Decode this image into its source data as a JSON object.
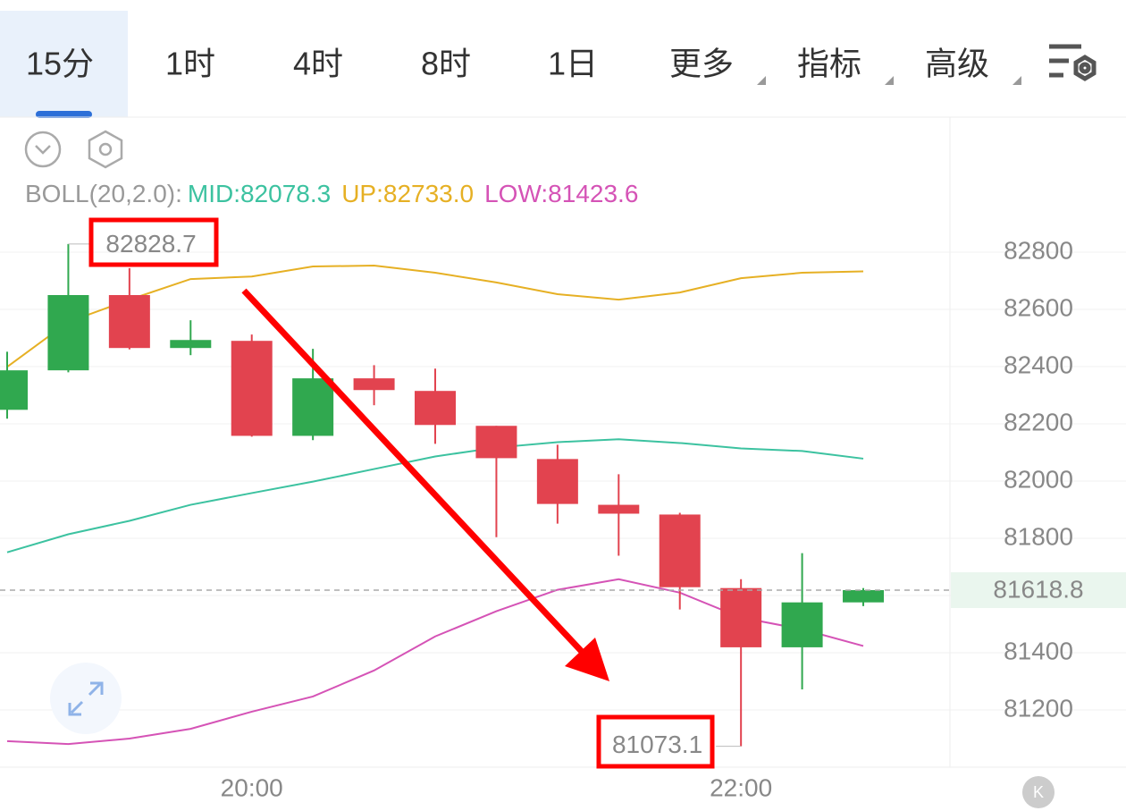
{
  "tabs": [
    "15分",
    "1时",
    "4时",
    "8时",
    "1日",
    "更多",
    "指标",
    "高级"
  ],
  "active_tab": 0,
  "chart_data": {
    "type": "candlestick",
    "x": [
      null,
      null,
      null,
      null,
      "20:00",
      null,
      null,
      null,
      null,
      null,
      null,
      null,
      "22:00",
      null,
      null
    ],
    "open": [
      82249,
      82387,
      82650,
      82465,
      82490,
      82158,
      82359,
      82315,
      82193,
      82077,
      81917,
      81883,
      81626,
      81419,
      81576
    ],
    "high": [
      82452,
      82828.7,
      82744,
      82562,
      82512,
      82462,
      82405,
      82393,
      82193,
      82127,
      82024,
      81889,
      81657,
      81748,
      81626
    ],
    "low": [
      82218,
      82380,
      82460,
      82440,
      82155,
      82143,
      82265,
      82130,
      81804,
      81851,
      81739,
      81551,
      81073.1,
      81272,
      81563
    ],
    "close": [
      82387,
      82650,
      82465,
      82493,
      82158,
      82359,
      82318,
      82196,
      82080,
      81920,
      81886,
      81629,
      81419,
      81576,
      81618.8
    ],
    "up_color": "#30a84f",
    "down_color": "#e2434f",
    "indicator_label": "BOLL(20,2.0):",
    "series": [
      {
        "name": "MID:",
        "color": "#3cc2a0",
        "values": [
          81751,
          81814,
          81861,
          81917,
          81958,
          81998,
          82042,
          82086,
          82117,
          82136,
          82146,
          82133,
          82114,
          82105,
          82078.3
        ],
        "value_labels": [
          null,
          null,
          null,
          null,
          null,
          null,
          null,
          null,
          null,
          null,
          null,
          null,
          null,
          null,
          "82078.3"
        ]
      },
      {
        "name": "UP:",
        "color": "#e6b024",
        "values": [
          82399,
          82556,
          82634,
          82706,
          82715,
          82750,
          82753,
          82728,
          82694,
          82653,
          82634,
          82659,
          82709,
          82728,
          82733
        ],
        "value_labels": [
          null,
          null,
          null,
          null,
          null,
          null,
          null,
          null,
          null,
          null,
          null,
          null,
          null,
          null,
          "82733.0"
        ]
      },
      {
        "name": "LOW:",
        "color": "#d553b6",
        "values": [
          81091,
          81081,
          81100,
          81134,
          81194,
          81247,
          81338,
          81457,
          81545,
          81620,
          81657,
          81610,
          81523,
          81482,
          81423.6
        ],
        "value_labels": [
          null,
          null,
          null,
          null,
          null,
          null,
          null,
          null,
          null,
          null,
          null,
          null,
          null,
          null,
          "81423.6"
        ]
      }
    ],
    "ylim": [
      81000,
      82900
    ],
    "yticks": [
      81200,
      81400,
      81600,
      81800,
      82000,
      82200,
      82400,
      82600,
      82800
    ],
    "grid": true
  }
}
